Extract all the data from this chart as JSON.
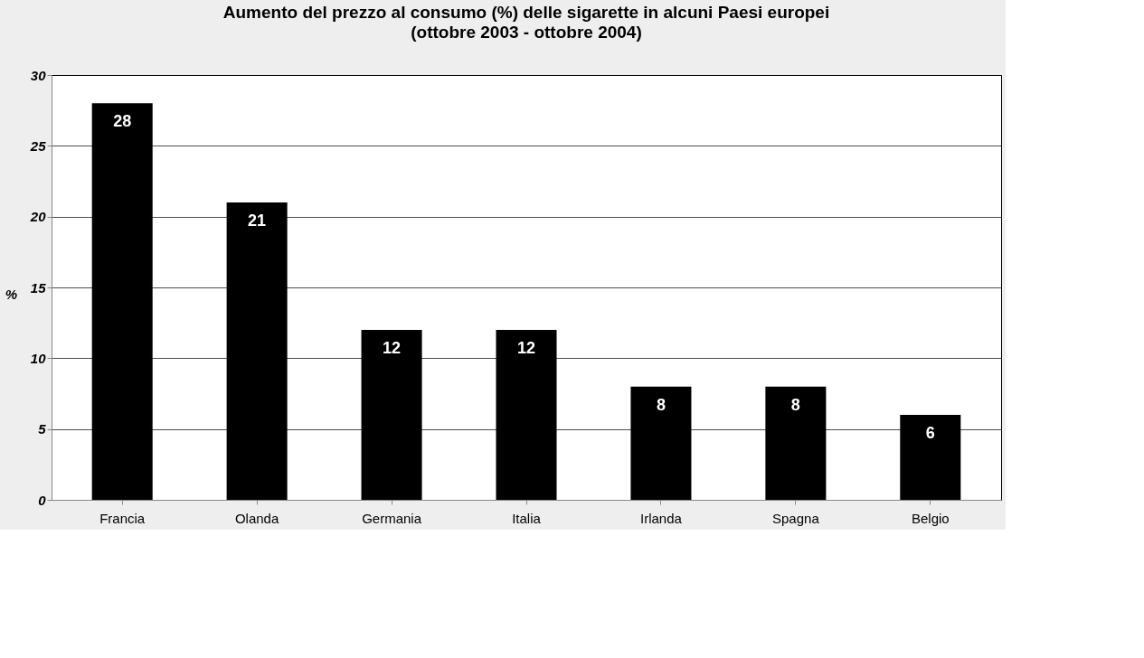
{
  "chart_data": {
    "type": "bar",
    "title": "Aumento del prezzo al consumo (%) delle sigarette in alcuni Paesi europei",
    "subtitle": "(ottobre 2003 - ottobre 2004)",
    "ylabel": "%",
    "categories": [
      "Francia",
      "Olanda",
      "Germania",
      "Italia",
      "Irlanda",
      "Spagna",
      "Belgio"
    ],
    "values": [
      28,
      21,
      12,
      12,
      8,
      8,
      6
    ],
    "color": "#000000",
    "ylim": [
      0,
      30
    ],
    "yticks": [
      0,
      5,
      10,
      15,
      20,
      25,
      30
    ],
    "grid": "y",
    "data_labels": true
  }
}
